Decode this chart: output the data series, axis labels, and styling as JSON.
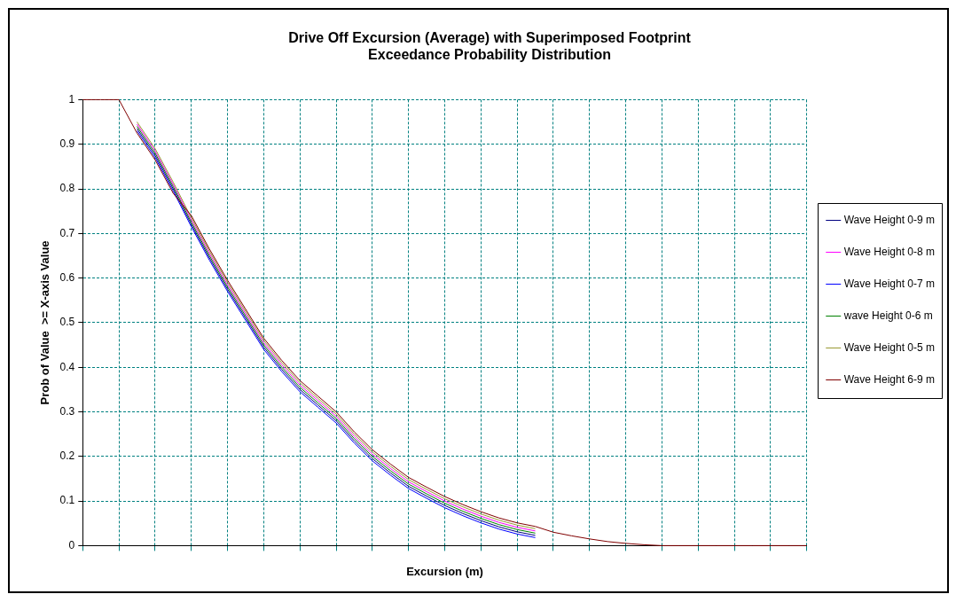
{
  "chart_data": {
    "type": "line",
    "title": "Drive Off Excursion (Average) with Superimposed Footprint Exceedance Probability Distribution",
    "xlabel": "Excursion (m)",
    "ylabel": "Prob of Value  >= X-axis Value",
    "categories": [
      null,
      null,
      null,
      null,
      null,
      null,
      null,
      null,
      null,
      null,
      null,
      null,
      null,
      null,
      null,
      null,
      null,
      null,
      null,
      null,
      null,
      null,
      null,
      null,
      null,
      null,
      null,
      null,
      null,
      null,
      null,
      null,
      null,
      null,
      null,
      null,
      null,
      null,
      null,
      null,
      null
    ],
    "series": [
      {
        "name": "Wave Height 0-9 m",
        "color": "#000080",
        "values": [
          null,
          null,
          null,
          0.935,
          0.875,
          0.8,
          0.72,
          0.645,
          0.575,
          0.51,
          0.445,
          0.395,
          0.35,
          0.315,
          0.28,
          0.235,
          0.195,
          0.163,
          0.133,
          0.111,
          0.09,
          0.072,
          0.056,
          0.042,
          0.031,
          0.023,
          null,
          null,
          null,
          null,
          null,
          null,
          null,
          null,
          null,
          null,
          null,
          null,
          null,
          null,
          null
        ]
      },
      {
        "name": "Wave Height 0-8 m",
        "color": "#ff00ff",
        "values": [
          null,
          null,
          null,
          0.945,
          0.885,
          0.81,
          0.73,
          0.655,
          0.585,
          0.52,
          0.455,
          0.405,
          0.36,
          0.325,
          0.29,
          0.245,
          0.205,
          0.173,
          0.143,
          0.121,
          0.1,
          0.082,
          0.066,
          0.052,
          0.041,
          0.033,
          null,
          null,
          null,
          null,
          null,
          null,
          null,
          null,
          null,
          null,
          null,
          null,
          null,
          null,
          null
        ]
      },
      {
        "name": "Wave Height 0-7 m",
        "color": "#0000ff",
        "values": [
          null,
          null,
          null,
          0.93,
          0.87,
          0.795,
          0.715,
          0.64,
          0.57,
          0.505,
          0.44,
          0.39,
          0.345,
          0.31,
          0.275,
          0.23,
          0.19,
          0.158,
          0.128,
          0.106,
          0.085,
          0.067,
          0.051,
          0.037,
          0.026,
          0.018,
          null,
          null,
          null,
          null,
          null,
          null,
          null,
          null,
          null,
          null,
          null,
          null,
          null,
          null,
          null
        ]
      },
      {
        "name": "wave Height 0-6 m",
        "color": "#008000",
        "values": [
          null,
          null,
          null,
          0.94,
          0.88,
          0.805,
          0.725,
          0.65,
          0.58,
          0.515,
          0.45,
          0.4,
          0.355,
          0.32,
          0.285,
          0.24,
          0.2,
          0.168,
          0.138,
          0.116,
          0.095,
          0.077,
          0.061,
          0.047,
          0.036,
          0.028,
          null,
          null,
          null,
          null,
          null,
          null,
          null,
          null,
          null,
          null,
          null,
          null,
          null,
          null,
          null
        ]
      },
      {
        "name": "Wave Height 0-5 m",
        "color": "#999933",
        "values": [
          null,
          null,
          null,
          0.95,
          0.89,
          0.815,
          0.735,
          0.66,
          0.59,
          0.525,
          0.46,
          0.41,
          0.365,
          0.33,
          0.295,
          0.25,
          0.21,
          0.178,
          0.148,
          0.126,
          0.105,
          0.087,
          0.071,
          0.057,
          0.046,
          0.038,
          null,
          null,
          null,
          null,
          null,
          null,
          null,
          null,
          null,
          null,
          null,
          null,
          null,
          null,
          null
        ]
      },
      {
        "name": "Wave Height 6-9 m",
        "color": "#800000",
        "values": [
          1,
          1,
          1,
          0.925,
          0.865,
          0.79,
          0.74,
          0.665,
          0.595,
          0.53,
          0.465,
          0.415,
          0.37,
          0.335,
          0.3,
          0.255,
          0.215,
          0.183,
          0.153,
          0.131,
          0.11,
          0.092,
          0.076,
          0.062,
          0.051,
          0.043,
          0.03,
          0.022,
          0.015,
          0.009,
          0.005,
          0.002,
          0,
          0,
          0,
          0,
          0,
          0,
          0,
          0,
          0
        ]
      }
    ],
    "ylim": [
      0,
      1
    ],
    "yticks": [
      0,
      0.1,
      0.2,
      0.3,
      0.4,
      0.5,
      0.6,
      0.7,
      0.8,
      0.9,
      1
    ],
    "grid": true,
    "legend": "right",
    "marker": "none",
    "line_style": "solid",
    "tick_labels": "y"
  }
}
